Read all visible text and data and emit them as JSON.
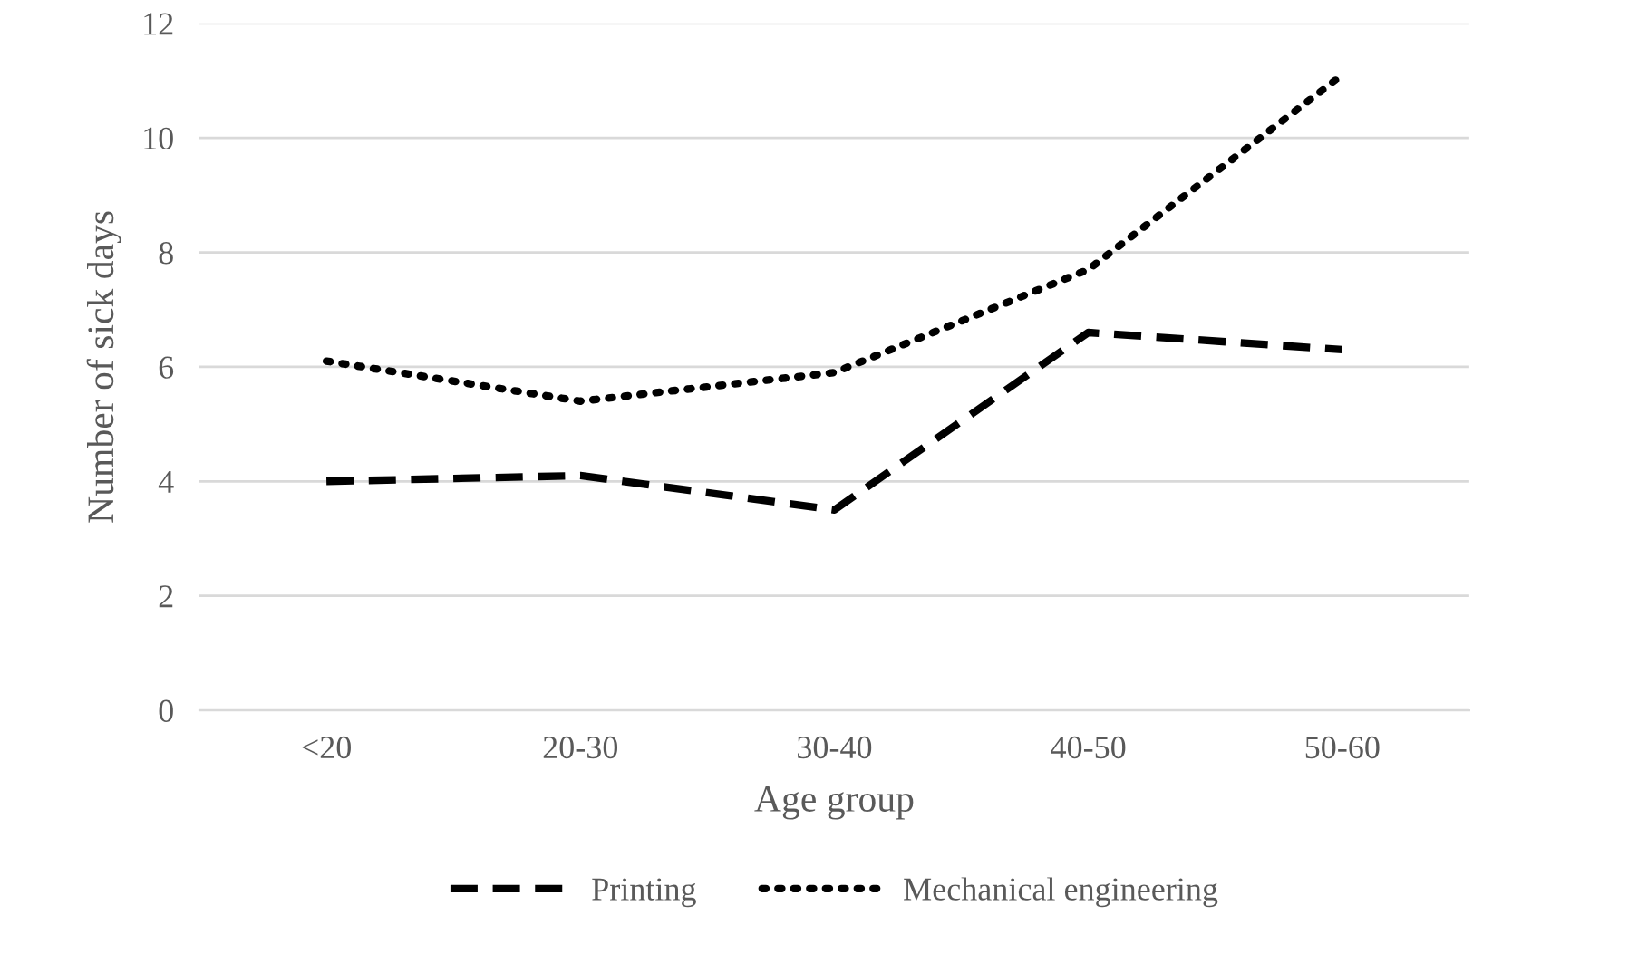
{
  "chart_data": {
    "type": "line",
    "xlabel": "Age group",
    "ylabel": "Number of sick days",
    "categories": [
      "<20",
      "20-30",
      "30-40",
      "40-50",
      "50-60"
    ],
    "series": [
      {
        "name": "Printing",
        "color": "#000000",
        "values": [
          4.0,
          4.1,
          3.5,
          6.6,
          6.3
        ],
        "line_style": "dashed"
      },
      {
        "name": "Mechanical engineering",
        "color": "#000000",
        "values": [
          6.1,
          5.4,
          5.9,
          7.7,
          11.1
        ],
        "line_style": "dotted"
      }
    ],
    "ylim": [
      0,
      12
    ],
    "yticks": [
      0,
      2,
      4,
      6,
      8,
      10,
      12
    ],
    "grid": "y",
    "legend": "bottom",
    "marker": "none"
  }
}
